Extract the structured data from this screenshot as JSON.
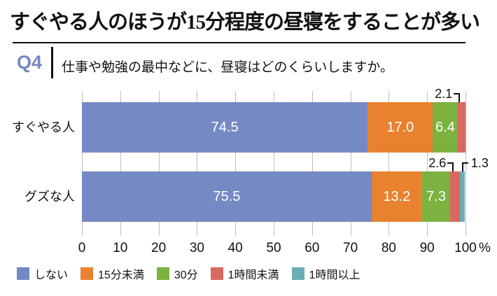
{
  "title": "すぐやる人のほうが15分程度の昼寝をすることが多い",
  "question": {
    "tag": "Q4",
    "text": "仕事や勉強の最中などに、昼寝はどのくらいしますか。"
  },
  "colors": {
    "accent_blue": "#7589c4",
    "grid": "#c4bdb5",
    "text": "#111111",
    "bar_value_text": "#ffffff"
  },
  "chart_data": {
    "type": "bar",
    "orientation": "horizontal",
    "stacked": true,
    "unit": "%",
    "xlim": [
      0,
      100
    ],
    "ticks": [
      0,
      10,
      20,
      30,
      40,
      50,
      60,
      70,
      80,
      90,
      100
    ],
    "grid": true,
    "legend_position": "bottom",
    "categories": [
      "すぐやる人",
      "グズな人"
    ],
    "series": [
      {
        "name": "しない",
        "color": "#7589c4",
        "values": [
          74.5,
          75.5
        ]
      },
      {
        "name": "15分未満",
        "color": "#e8822f",
        "values": [
          17.0,
          13.2
        ]
      },
      {
        "name": "30分",
        "color": "#7cb23f",
        "values": [
          6.4,
          7.3
        ]
      },
      {
        "name": "1時間未満",
        "color": "#d9695f",
        "values": [
          2.1,
          2.6
        ]
      },
      {
        "name": "1時間以上",
        "color": "#6cadb6",
        "values": [
          0,
          1.3
        ]
      }
    ],
    "callouts": [
      {
        "category": 0,
        "series": 3,
        "label": "2.1",
        "side": "left"
      },
      {
        "category": 1,
        "series": 3,
        "label": "2.6",
        "side": "left"
      },
      {
        "category": 1,
        "series": 4,
        "label": "1.3",
        "side": "right"
      }
    ]
  }
}
